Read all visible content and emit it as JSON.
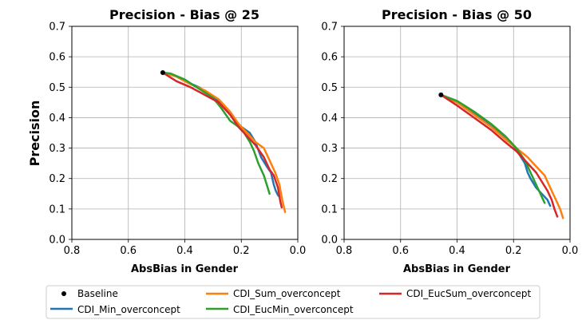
{
  "figure": {
    "ylabel": "Precision",
    "legend": [
      {
        "label": "Baseline",
        "kind": "marker",
        "color": "#000000"
      },
      {
        "label": "CDI_Min_overconcept",
        "kind": "line",
        "color": "#1f77b4"
      },
      {
        "label": "CDI_Sum_overconcept",
        "kind": "line",
        "color": "#ff7f0e"
      },
      {
        "label": "CDI_EucMin_overconcept",
        "kind": "line",
        "color": "#2ca02c"
      },
      {
        "label": "CDI_EucSum_overconcept",
        "kind": "line",
        "color": "#d62728"
      }
    ]
  },
  "chart_data": [
    {
      "type": "line",
      "title": "Precision - Bias @ 25",
      "xlabel": "AbsBias in Gender",
      "ylabel": "Precision",
      "xlim": [
        0.8,
        0.0
      ],
      "ylim": [
        0.0,
        0.7
      ],
      "x_inverted": true,
      "grid": true,
      "xticks": [
        0.8,
        0.6,
        0.4,
        0.2,
        0.0
      ],
      "xtick_labels": [
        "0.8",
        "0.6",
        "0.4",
        "0.2",
        "0.0"
      ],
      "yticks": [
        0.0,
        0.1,
        0.2,
        0.3,
        0.4,
        0.5,
        0.6,
        0.7
      ],
      "ytick_labels": [
        "0.0",
        "0.1",
        "0.2",
        "0.3",
        "0.4",
        "0.5",
        "0.6",
        "0.7"
      ],
      "baseline": {
        "name": "Baseline",
        "x": 0.478,
        "y": 0.548
      },
      "series": [
        {
          "name": "CDI_Min_overconcept",
          "color": "#1f77b4",
          "x": [
            0.478,
            0.44,
            0.4,
            0.35,
            0.3,
            0.26,
            0.23,
            0.2,
            0.17,
            0.15,
            0.13,
            0.11,
            0.095,
            0.085,
            0.078,
            0.07,
            0.065
          ],
          "y": [
            0.548,
            0.54,
            0.52,
            0.5,
            0.47,
            0.44,
            0.4,
            0.37,
            0.35,
            0.32,
            0.27,
            0.24,
            0.22,
            0.18,
            0.16,
            0.145,
            0.14
          ]
        },
        {
          "name": "CDI_Sum_overconcept",
          "color": "#ff7f0e",
          "x": [
            0.478,
            0.43,
            0.38,
            0.33,
            0.28,
            0.24,
            0.21,
            0.18,
            0.15,
            0.12,
            0.1,
            0.08,
            0.065,
            0.055,
            0.045
          ],
          "y": [
            0.548,
            0.535,
            0.51,
            0.49,
            0.46,
            0.42,
            0.38,
            0.35,
            0.32,
            0.3,
            0.26,
            0.22,
            0.18,
            0.13,
            0.09
          ]
        },
        {
          "name": "CDI_EucMin_overconcept",
          "color": "#2ca02c",
          "x": [
            0.478,
            0.45,
            0.4,
            0.35,
            0.3,
            0.27,
            0.24,
            0.21,
            0.19,
            0.17,
            0.155,
            0.14,
            0.12,
            0.11,
            0.1
          ],
          "y": [
            0.548,
            0.545,
            0.525,
            0.495,
            0.465,
            0.43,
            0.39,
            0.37,
            0.35,
            0.32,
            0.29,
            0.25,
            0.21,
            0.18,
            0.15
          ]
        },
        {
          "name": "CDI_EucSum_overconcept",
          "color": "#d62728",
          "x": [
            0.478,
            0.43,
            0.38,
            0.33,
            0.28,
            0.24,
            0.21,
            0.18,
            0.15,
            0.12,
            0.1,
            0.085,
            0.07,
            0.063,
            0.057
          ],
          "y": [
            0.548,
            0.52,
            0.5,
            0.475,
            0.45,
            0.41,
            0.37,
            0.34,
            0.31,
            0.27,
            0.23,
            0.21,
            0.17,
            0.13,
            0.105
          ]
        }
      ]
    },
    {
      "type": "line",
      "title": "Precision - Bias @ 50",
      "xlabel": "AbsBias in Gender",
      "ylabel": "",
      "xlim": [
        0.8,
        0.0
      ],
      "ylim": [
        0.0,
        0.7
      ],
      "x_inverted": true,
      "grid": true,
      "xticks": [
        0.8,
        0.6,
        0.4,
        0.2,
        0.0
      ],
      "xtick_labels": [
        "0.8",
        "0.6",
        "0.4",
        "0.2",
        "0.0"
      ],
      "yticks": [
        0.0,
        0.1,
        0.2,
        0.3,
        0.4,
        0.5,
        0.6,
        0.7
      ],
      "ytick_labels": [
        "0.0",
        "0.1",
        "0.2",
        "0.3",
        "0.4",
        "0.5",
        "0.6",
        "0.7"
      ],
      "baseline": {
        "name": "Baseline",
        "x": 0.457,
        "y": 0.475
      },
      "series": [
        {
          "name": "CDI_Min_overconcept",
          "color": "#1f77b4",
          "x": [
            0.457,
            0.4,
            0.35,
            0.3,
            0.25,
            0.21,
            0.18,
            0.16,
            0.15,
            0.14,
            0.12,
            0.1,
            0.08,
            0.07
          ],
          "y": [
            0.475,
            0.45,
            0.42,
            0.39,
            0.35,
            0.32,
            0.28,
            0.25,
            0.22,
            0.2,
            0.17,
            0.15,
            0.13,
            0.11
          ]
        },
        {
          "name": "CDI_Sum_overconcept",
          "color": "#ff7f0e",
          "x": [
            0.457,
            0.4,
            0.34,
            0.28,
            0.23,
            0.19,
            0.15,
            0.12,
            0.09,
            0.07,
            0.05,
            0.035,
            0.025
          ],
          "y": [
            0.475,
            0.45,
            0.41,
            0.37,
            0.33,
            0.3,
            0.27,
            0.24,
            0.21,
            0.17,
            0.13,
            0.1,
            0.07
          ]
        },
        {
          "name": "CDI_EucMin_overconcept",
          "color": "#2ca02c",
          "x": [
            0.457,
            0.4,
            0.34,
            0.28,
            0.23,
            0.19,
            0.16,
            0.14,
            0.125,
            0.11,
            0.1,
            0.09
          ],
          "y": [
            0.475,
            0.455,
            0.42,
            0.38,
            0.34,
            0.3,
            0.26,
            0.22,
            0.19,
            0.16,
            0.14,
            0.12
          ]
        },
        {
          "name": "CDI_EucSum_overconcept",
          "color": "#d62728",
          "x": [
            0.457,
            0.4,
            0.34,
            0.28,
            0.23,
            0.19,
            0.15,
            0.12,
            0.1,
            0.08,
            0.065,
            0.055,
            0.045
          ],
          "y": [
            0.475,
            0.44,
            0.4,
            0.36,
            0.32,
            0.29,
            0.25,
            0.22,
            0.19,
            0.16,
            0.13,
            0.1,
            0.075
          ]
        }
      ]
    }
  ]
}
